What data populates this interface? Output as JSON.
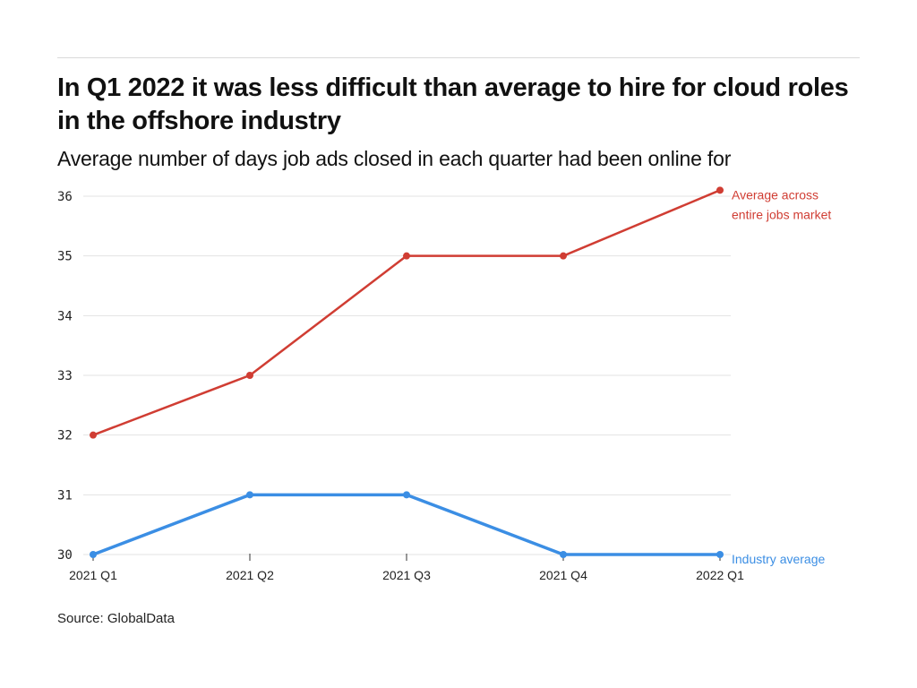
{
  "chart_data": {
    "type": "line",
    "title": "In Q1 2022 it was less difficult than average to hire for cloud roles in the offshore industry",
    "subtitle": "Average number of days job ads closed in each quarter had been online for",
    "xlabel": "",
    "ylabel": "",
    "categories": [
      "2021 Q1",
      "2021 Q2",
      "2021 Q3",
      "2021 Q4",
      "2022 Q1"
    ],
    "y_ticks": [
      30,
      31,
      32,
      33,
      34,
      35,
      36
    ],
    "ylim": [
      30,
      36
    ],
    "grid": true,
    "series": [
      {
        "name": "Average across entire jobs market",
        "label_lines": [
          "Average across",
          "entire jobs market"
        ],
        "color": "#d03d33",
        "values": [
          32,
          33,
          35,
          35,
          36.1
        ]
      },
      {
        "name": "Industry average",
        "label_lines": [
          "Industry average"
        ],
        "color": "#3b8ee4",
        "values": [
          30,
          31,
          31,
          30,
          30
        ]
      }
    ],
    "source": "Source: GlobalData"
  }
}
